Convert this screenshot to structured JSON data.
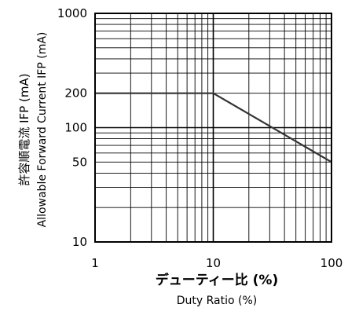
{
  "chart_data": {
    "type": "line",
    "x_scale": "log",
    "y_scale": "log",
    "xlim": [
      1,
      100
    ],
    "ylim": [
      10,
      1000
    ],
    "grid": true,
    "x_ticks": [
      {
        "value": 1,
        "label": "1"
      },
      {
        "value": 10,
        "label": "10"
      },
      {
        "value": 100,
        "label": "100"
      }
    ],
    "y_ticks": [
      {
        "value": 1000,
        "label": "1000"
      },
      {
        "value": 200,
        "label": "200"
      },
      {
        "value": 100,
        "label": "100"
      },
      {
        "value": 50,
        "label": "50"
      },
      {
        "value": 10,
        "label": "10"
      }
    ],
    "xlabel_jp": "デューティー比 (%)",
    "xlabel_en": "Duty Ratio (%)",
    "ylabel_jp": "許容順電流 IFP (mA)",
    "ylabel_en": "Allowable Forward Current IFP (mA)",
    "series": [
      {
        "x": [
          1,
          10,
          100
        ],
        "y": [
          200,
          200,
          50
        ],
        "color": "#333333"
      }
    ]
  }
}
